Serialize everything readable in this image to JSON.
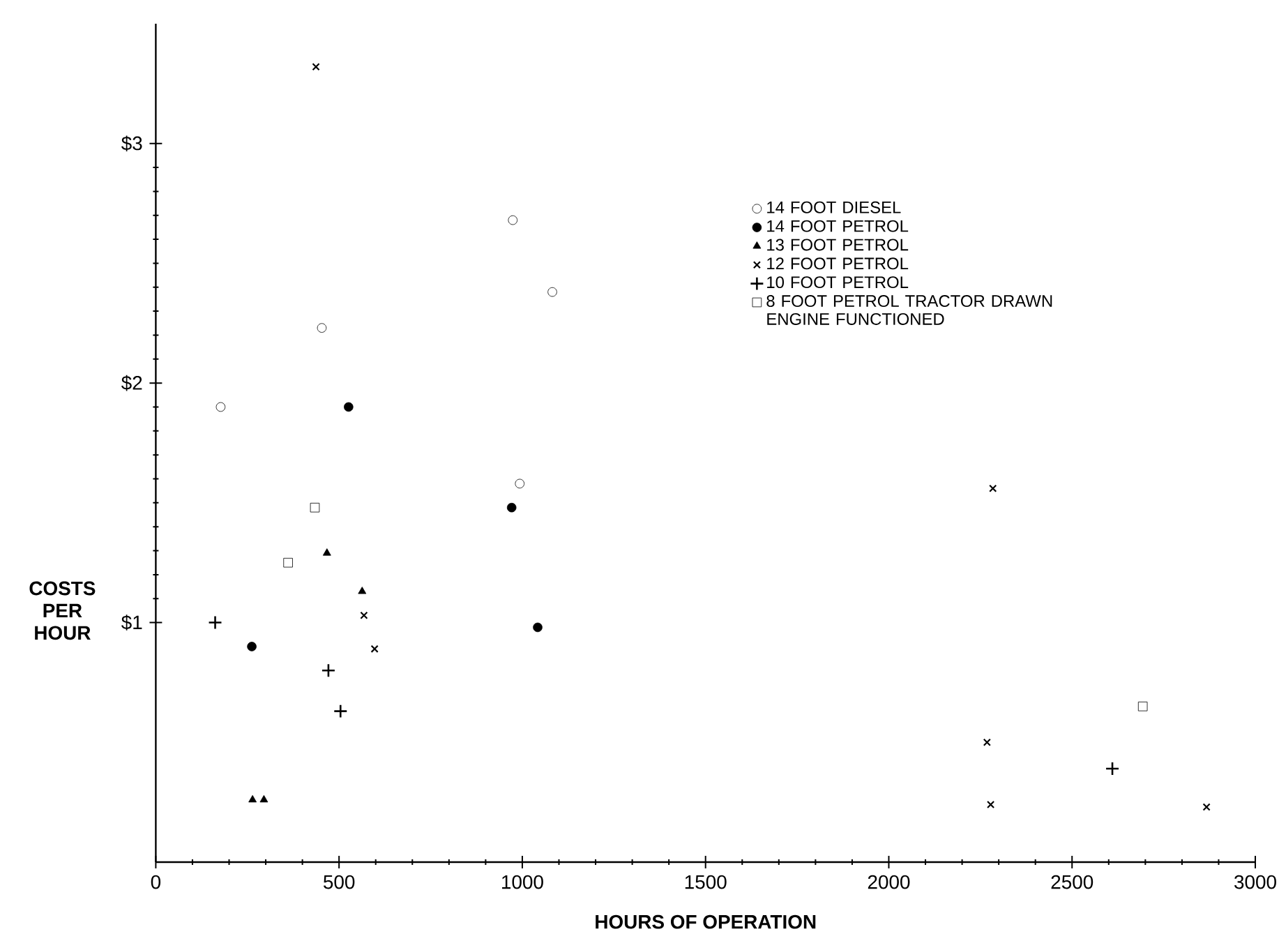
{
  "chart_data": {
    "type": "scatter",
    "xlabel": "HOURS OF OPERATION",
    "ylabel": "COSTS PER HOUR",
    "xlim": [
      0,
      3000
    ],
    "ylim": [
      0,
      3.5
    ],
    "xticks": [
      0,
      500,
      1000,
      1500,
      2000,
      2500,
      3000
    ],
    "yticks": [
      {
        "value": 1,
        "label": "$1"
      },
      {
        "value": 2,
        "label": "$2"
      },
      {
        "value": 3,
        "label": "$3"
      }
    ],
    "legend": "top right",
    "series": [
      {
        "name": "14 FOOT DIESEL",
        "color": "#000000",
        "marker": "circle",
        "x": [
          177,
          453,
          974,
          993,
          1082
        ],
        "values": [
          1.9,
          2.23,
          2.68,
          1.58,
          2.38
        ]
      },
      {
        "name": "14 FOOT PETROL",
        "color": "#000000",
        "marker": "filled circle",
        "x": [
          262,
          526,
          971,
          1042
        ],
        "values": [
          0.9,
          1.9,
          1.48,
          0.98
        ]
      },
      {
        "name": "13 FOOT PETROL",
        "color": "#000000",
        "marker": "triangle",
        "x": [
          264,
          295,
          467,
          563
        ],
        "values": [
          0.26,
          0.26,
          1.29,
          1.13
        ]
      },
      {
        "name": "12 FOOT PETROL",
        "color": "#000000",
        "marker": "cross",
        "x": [
          437,
          568,
          597,
          2268,
          2278,
          2284,
          2867
        ],
        "values": [
          3.32,
          1.03,
          0.89,
          0.5,
          0.24,
          1.56,
          0.23
        ]
      },
      {
        "name": "10 FOOT PETROL",
        "color": "#000000",
        "marker": "plus",
        "x": [
          162,
          471,
          504,
          2610
        ],
        "values": [
          1.0,
          0.8,
          0.63,
          0.39
        ]
      },
      {
        "name": "8 FOOT PETROL TRACTOR DRAWN ENGINE FUNCTIONED",
        "color": "#000000",
        "marker": "square",
        "x": [
          361,
          434,
          2693
        ],
        "values": [
          1.25,
          1.48,
          0.65
        ]
      }
    ]
  }
}
